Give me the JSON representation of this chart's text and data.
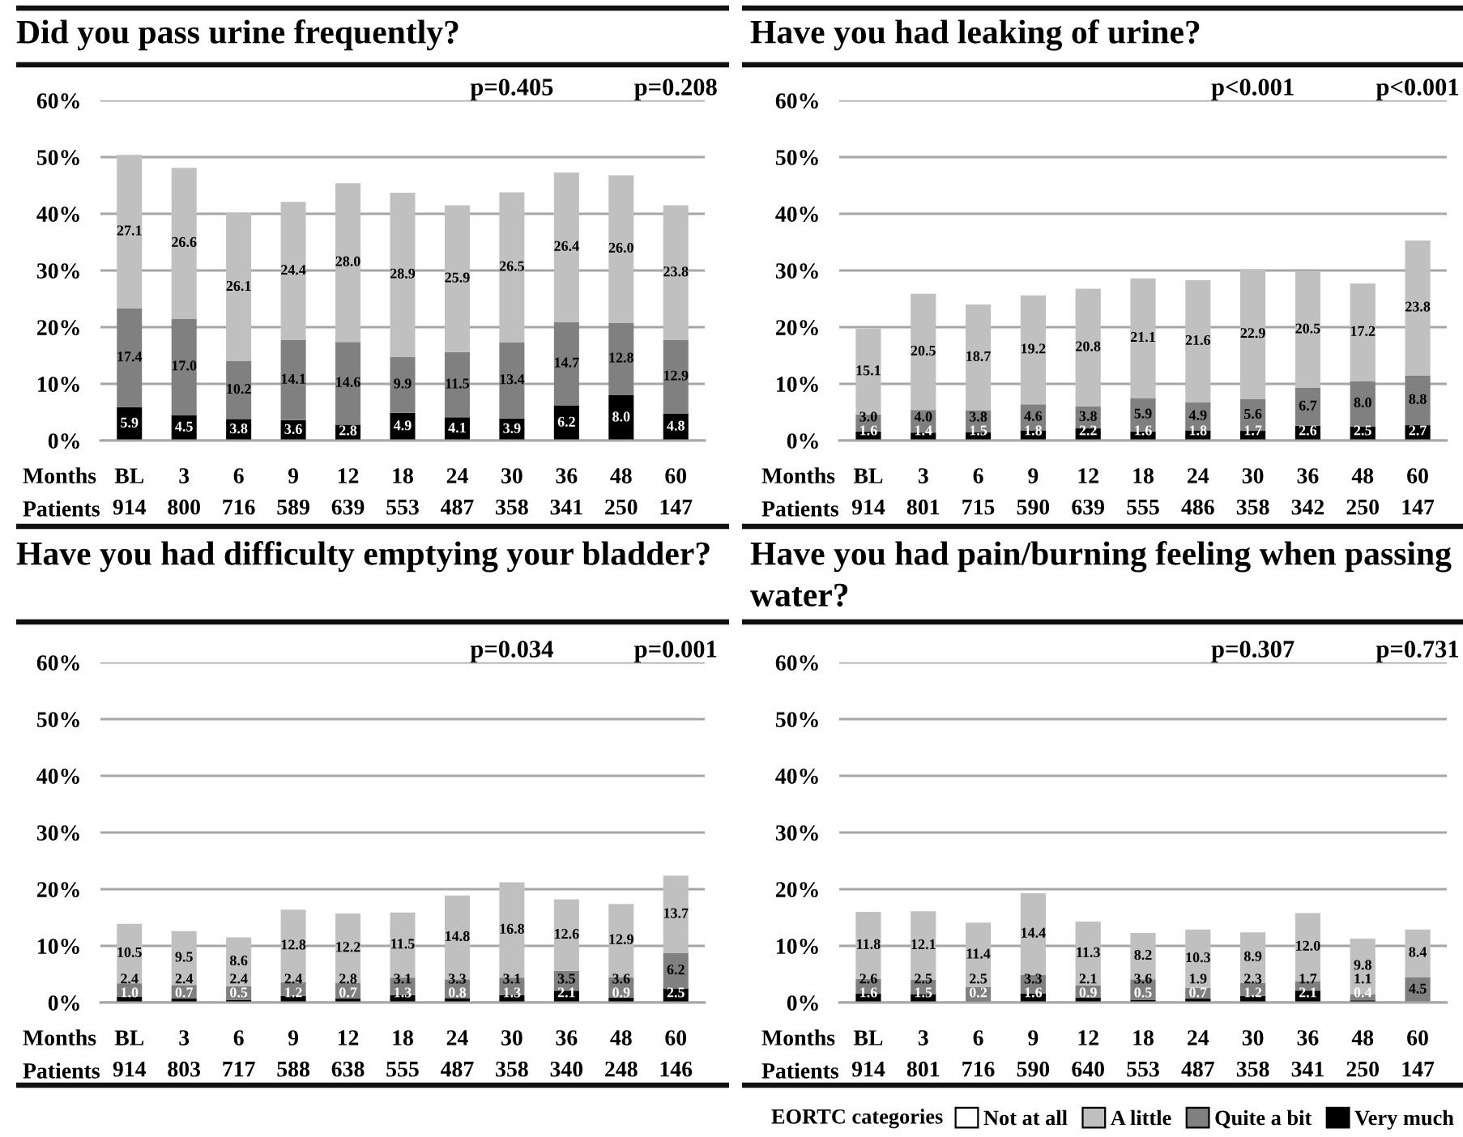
{
  "chart_data": [
    {
      "type": "bar",
      "title": "Did you pass urine frequently?",
      "stacked": true,
      "grid": "y",
      "categories": [
        "BL\n914",
        "3\n800",
        "6\n716",
        "9\n589",
        "12\n639",
        "18\n553",
        "24\n487",
        "30\n358",
        "36\n341",
        "48\n250",
        "60\n147"
      ],
      "series": [
        {
          "color": "#000000",
          "values": [
            5.9,
            4.5,
            3.8,
            3.6,
            2.8,
            4.9,
            4.1,
            3.9,
            6.2,
            8.0,
            4.8
          ],
          "value_labels": [
            "5.9",
            "4.5",
            "3.8",
            "3.6",
            "2.8",
            "4.9",
            "4.1",
            "3.9",
            "6.2",
            "8.0",
            "4.8"
          ]
        },
        {
          "color": "#808080",
          "values": [
            17.4,
            17.0,
            10.2,
            14.1,
            14.6,
            9.9,
            11.5,
            13.4,
            14.7,
            12.8,
            12.9
          ],
          "value_labels": [
            "17.4",
            "17.0",
            "10.2",
            "14.1",
            "14.6",
            "9.9",
            "11.5",
            "13.4",
            "14.7",
            "12.8",
            "12.9"
          ]
        },
        {
          "color": "#c0c0c0",
          "values": [
            27.1,
            26.6,
            26.1,
            24.4,
            28.0,
            28.9,
            25.9,
            26.5,
            26.4,
            26.0,
            23.8
          ],
          "value_labels": [
            "27.1",
            "26.6",
            "26.1",
            "24.4",
            "28.0",
            "28.9",
            "25.9",
            "26.5",
            "26.4",
            "26.0",
            "23.8"
          ]
        }
      ],
      "ylim": [
        0,
        60
      ],
      "yticks": [
        {
          "value": 0,
          "label": "0%"
        },
        {
          "value": 10,
          "label": "10%"
        },
        {
          "value": 20,
          "label": "20%"
        },
        {
          "value": 30,
          "label": "30%"
        },
        {
          "value": 40,
          "label": "40%"
        },
        {
          "value": 50,
          "label": "50%"
        },
        {
          "value": 60,
          "label": "60%"
        }
      ],
      "annotations": [
        "Months",
        "Patients",
        "p=0.405",
        "p=0.208"
      ]
    },
    {
      "type": "bar",
      "title": "Have you had leaking of urine?",
      "stacked": true,
      "grid": "y",
      "categories": [
        "BL\n914",
        "3\n801",
        "6\n715",
        "9\n590",
        "12\n639",
        "18\n555",
        "24\n486",
        "30\n358",
        "36\n342",
        "48\n250",
        "60\n147"
      ],
      "series": [
        {
          "color": "#000000",
          "values": [
            1.6,
            1.4,
            1.5,
            1.8,
            2.2,
            1.6,
            1.8,
            1.7,
            2.6,
            2.5,
            2.7
          ],
          "value_labels": [
            "1.6",
            "1.4",
            "1.5",
            "1.8",
            "2.2",
            "1.6",
            "1.8",
            "1.7",
            "2.6",
            "2.5",
            "2.7"
          ]
        },
        {
          "color": "#808080",
          "values": [
            3.0,
            4.0,
            3.8,
            4.6,
            3.8,
            5.9,
            4.9,
            5.6,
            6.7,
            8.0,
            8.8
          ],
          "value_labels": [
            "3.0",
            "4.0",
            "3.8",
            "4.6",
            "3.8",
            "5.9",
            "4.9",
            "5.6",
            "6.7",
            "8.0",
            "8.8"
          ]
        },
        {
          "color": "#c0c0c0",
          "values": [
            15.1,
            20.5,
            18.7,
            19.2,
            20.8,
            21.1,
            21.6,
            22.9,
            20.5,
            17.2,
            23.8
          ],
          "value_labels": [
            "15.1",
            "20.5",
            "18.7",
            "19.2",
            "20.8",
            "21.1",
            "21.6",
            "22.9",
            "20.5",
            "17.2",
            "23.8"
          ]
        }
      ],
      "ylim": [
        0,
        60
      ],
      "yticks": [
        {
          "value": 0,
          "label": "0%"
        },
        {
          "value": 10,
          "label": "10%"
        },
        {
          "value": 20,
          "label": "20%"
        },
        {
          "value": 30,
          "label": "30%"
        },
        {
          "value": 40,
          "label": "40%"
        },
        {
          "value": 50,
          "label": "50%"
        },
        {
          "value": 60,
          "label": "60%"
        }
      ],
      "annotations": [
        "Months",
        "Patients",
        "p<0.001",
        "p<0.001"
      ]
    },
    {
      "type": "bar",
      "title": "Have you had difficulty emptying your bladder?",
      "stacked": true,
      "grid": "y",
      "categories": [
        "BL\n914",
        "3\n803",
        "6\n717",
        "9\n588",
        "12\n638",
        "18\n555",
        "24\n487",
        "30\n358",
        "36\n340",
        "48\n248",
        "60\n146"
      ],
      "series": [
        {
          "color": "#000000",
          "values": [
            1.0,
            0.7,
            0.5,
            1.2,
            0.7,
            1.3,
            0.8,
            1.3,
            2.1,
            0.9,
            2.5
          ],
          "value_labels": [
            "1.0",
            "0.7",
            "0.5",
            "1.2",
            "0.7",
            "1.3",
            "0.8",
            "1.3",
            "2.1",
            "0.9",
            "2.5"
          ]
        },
        {
          "color": "#808080",
          "values": [
            2.4,
            2.4,
            2.4,
            2.4,
            2.8,
            3.1,
            3.3,
            3.1,
            3.5,
            3.6,
            6.2
          ],
          "value_labels": [
            "2.4",
            "2.4",
            "2.4",
            "2.4",
            "2.8",
            "3.1",
            "3.3",
            "3.1",
            "3.5",
            "3.6",
            "6.2"
          ]
        },
        {
          "color": "#c0c0c0",
          "values": [
            10.5,
            9.5,
            8.6,
            12.8,
            12.2,
            11.5,
            14.8,
            16.8,
            12.6,
            12.9,
            13.7
          ],
          "value_labels": [
            "10.5",
            "9.5",
            "8.6",
            "12.8",
            "12.2",
            "11.5",
            "14.8",
            "16.8",
            "12.6",
            "12.9",
            "13.7"
          ]
        }
      ],
      "ylim": [
        0,
        60
      ],
      "yticks": [
        {
          "value": 0,
          "label": "0%"
        },
        {
          "value": 10,
          "label": "10%"
        },
        {
          "value": 20,
          "label": "20%"
        },
        {
          "value": 30,
          "label": "30%"
        },
        {
          "value": 40,
          "label": "40%"
        },
        {
          "value": 50,
          "label": "50%"
        },
        {
          "value": 60,
          "label": "60%"
        }
      ],
      "annotations": [
        "Months",
        "Patients",
        "p=0.034",
        "p=0.001"
      ]
    },
    {
      "type": "bar",
      "title": "Have you had pain/burning feeling when passing water?",
      "stacked": true,
      "grid": "y",
      "legend": "bottom",
      "legend_title": "EORTC categories",
      "categories": [
        "BL\n914",
        "3\n801",
        "6\n716",
        "9\n590",
        "12\n640",
        "18\n553",
        "24\n487",
        "30\n358",
        "36\n341",
        "48\n250",
        "60\n147"
      ],
      "series": [
        {
          "name": "Very much",
          "color": "#000000",
          "values": [
            1.6,
            1.5,
            0.2,
            1.6,
            0.9,
            0.5,
            0.7,
            1.2,
            2.1,
            0.4,
            null
          ],
          "value_labels": [
            "1.6",
            "1.5",
            "0.2",
            "1.6",
            "0.9",
            "0.5",
            "0.7",
            "1.2",
            "2.1",
            "0.4",
            null
          ]
        },
        {
          "name": "Quite a bit",
          "color": "#808080",
          "values": [
            2.6,
            2.5,
            2.5,
            3.3,
            2.1,
            3.6,
            1.9,
            2.3,
            1.7,
            1.1,
            4.5
          ],
          "value_labels": [
            "2.6",
            "2.5",
            "2.5",
            "3.3",
            "2.1",
            "3.6",
            "1.9",
            "2.3",
            "1.7",
            "1.1",
            "4.5"
          ]
        },
        {
          "name": "A little",
          "color": "#c0c0c0",
          "values": [
            11.8,
            12.1,
            11.4,
            14.4,
            11.3,
            8.2,
            10.3,
            8.9,
            12.0,
            9.8,
            8.4
          ],
          "value_labels": [
            "11.8",
            "12.1",
            "11.4",
            "14.4",
            "11.3",
            "8.2",
            "10.3",
            "8.9",
            "12.0",
            "9.8",
            "8.4"
          ]
        },
        {
          "name": "Not at all",
          "color": "#ffffff",
          "values": [
            null,
            null,
            null,
            null,
            null,
            null,
            null,
            null,
            null,
            null,
            null
          ]
        }
      ],
      "ylim": [
        0,
        60
      ],
      "yticks": [
        {
          "value": 0,
          "label": "0%"
        },
        {
          "value": 10,
          "label": "10%"
        },
        {
          "value": 20,
          "label": "20%"
        },
        {
          "value": 30,
          "label": "30%"
        },
        {
          "value": 40,
          "label": "40%"
        },
        {
          "value": 50,
          "label": "50%"
        },
        {
          "value": 60,
          "label": "60%"
        }
      ],
      "annotations": [
        "Months",
        "Patients",
        "p=0.307",
        "p=0.731"
      ]
    }
  ]
}
